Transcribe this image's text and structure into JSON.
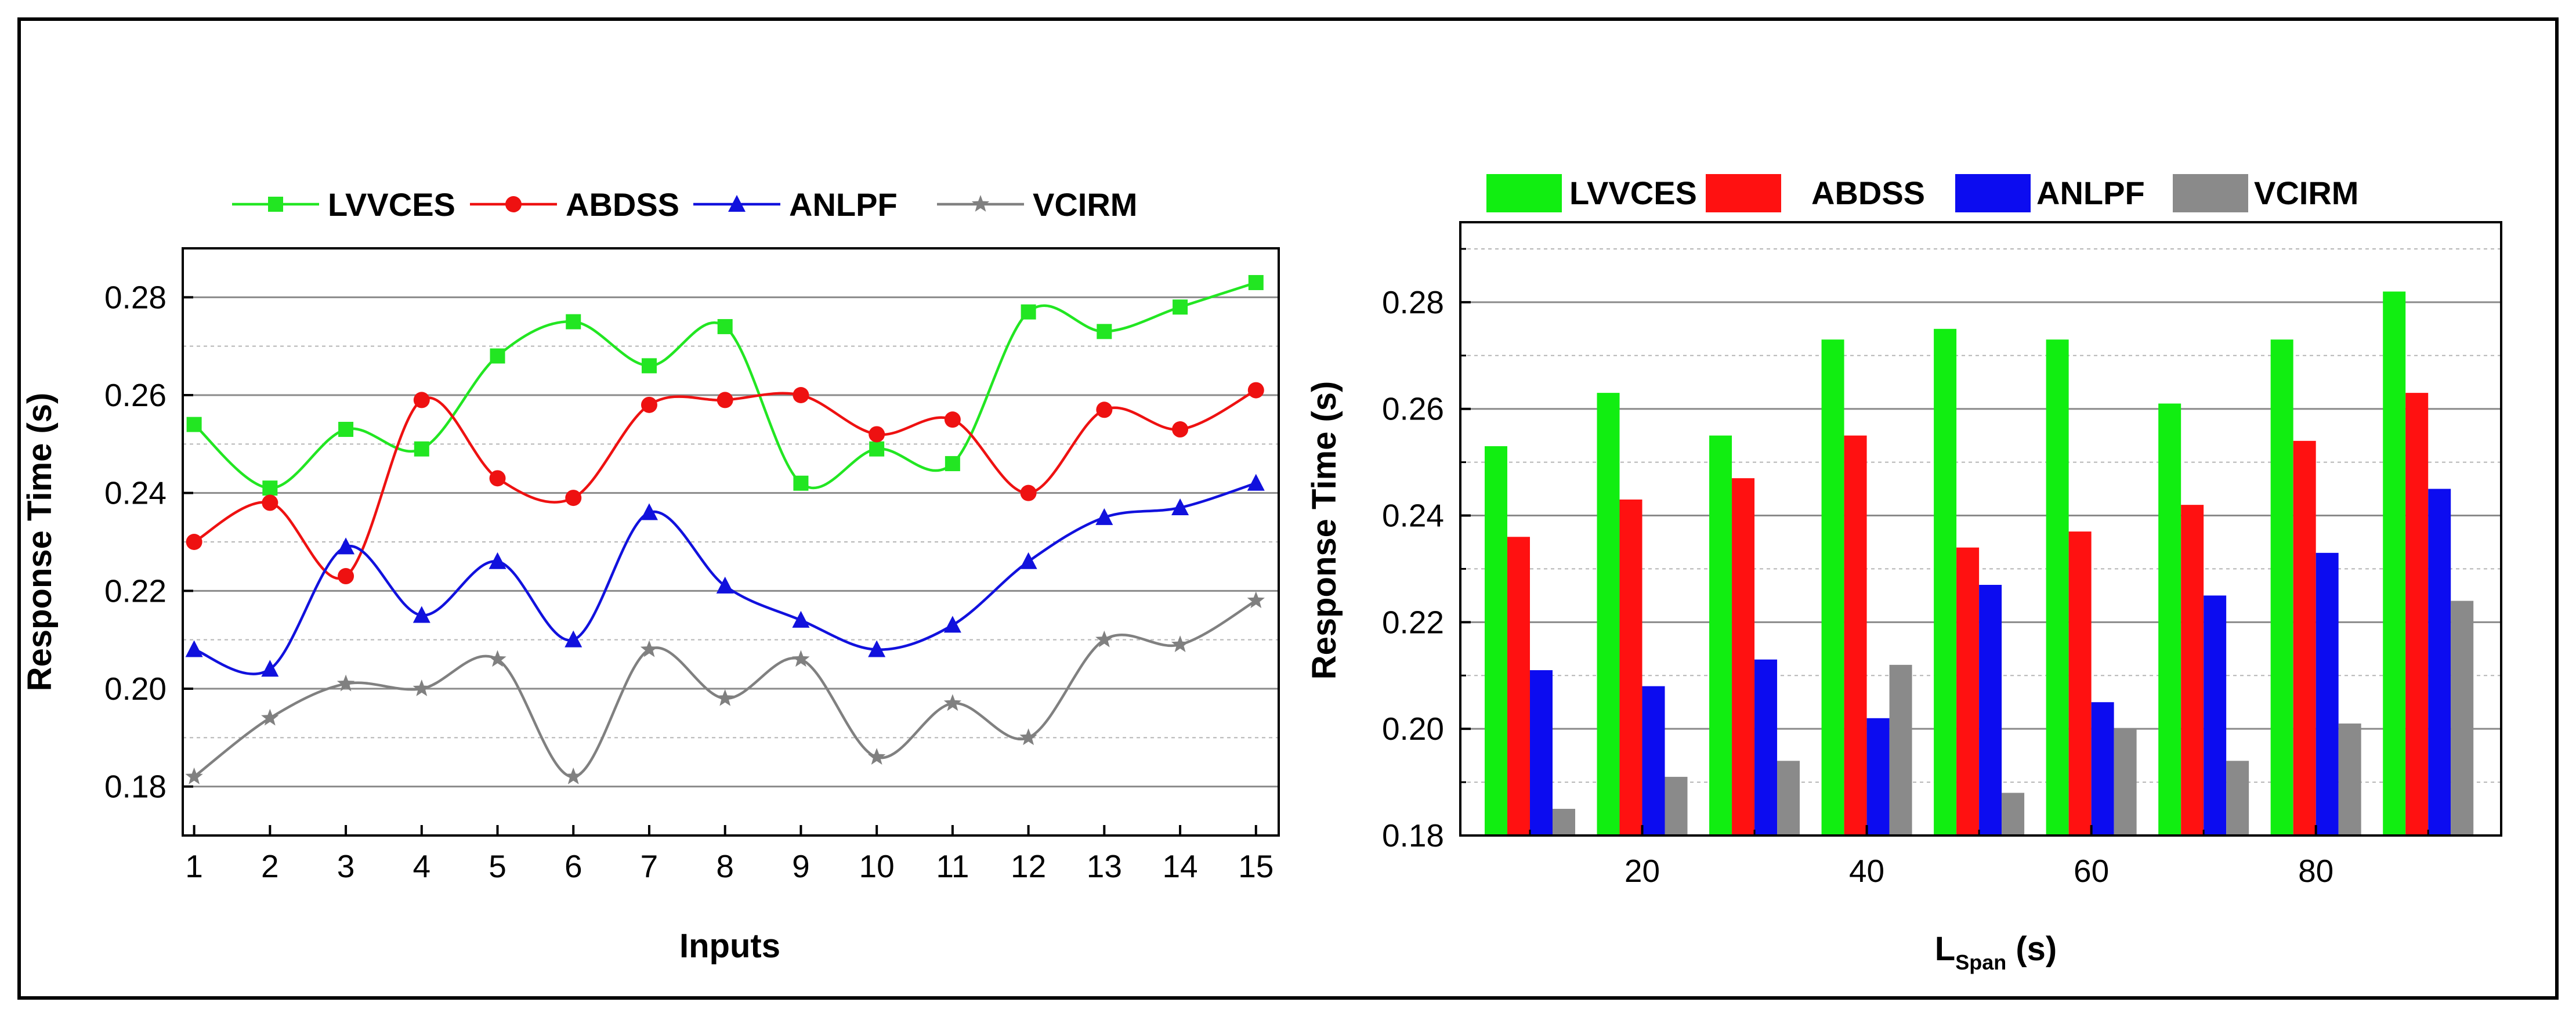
{
  "chart_data": [
    {
      "type": "line",
      "title": "",
      "xlabel": "Inputs",
      "ylabel": "Response Time (s)",
      "x": [
        1,
        2,
        3,
        4,
        5,
        6,
        7,
        8,
        9,
        10,
        11,
        12,
        13,
        14,
        15
      ],
      "xticks": [
        "1",
        "2",
        "3",
        "4",
        "5",
        "6",
        "7",
        "8",
        "9",
        "10",
        "11",
        "12",
        "13",
        "14",
        "15"
      ],
      "xlim": [
        0.85,
        15.3
      ],
      "ylim": [
        0.17,
        0.29
      ],
      "yticks": [
        0.18,
        0.2,
        0.22,
        0.24,
        0.26,
        0.28
      ],
      "ytick_labels": [
        "0.18",
        "0.20",
        "0.22",
        "0.24",
        "0.26",
        "0.28"
      ],
      "grid": true,
      "legend_position": "top",
      "series": [
        {
          "name": "LVVCES",
          "color": "#22e622",
          "marker": "square",
          "values": [
            0.254,
            0.241,
            0.253,
            0.249,
            0.268,
            0.275,
            0.266,
            0.274,
            0.242,
            0.249,
            0.246,
            0.277,
            0.273,
            0.278,
            0.283
          ]
        },
        {
          "name": "ABDSS",
          "color": "#ee1111",
          "marker": "circle",
          "values": [
            0.23,
            0.238,
            0.223,
            0.259,
            0.243,
            0.239,
            0.258,
            0.259,
            0.26,
            0.252,
            0.255,
            0.24,
            0.257,
            0.253,
            0.261
          ]
        },
        {
          "name": "ANLPF",
          "color": "#1111dd",
          "marker": "triangle",
          "values": [
            0.208,
            0.204,
            0.229,
            0.215,
            0.226,
            0.21,
            0.236,
            0.221,
            0.214,
            0.208,
            0.213,
            0.226,
            0.235,
            0.237,
            0.242
          ]
        },
        {
          "name": "VCIRM",
          "color": "#808080",
          "marker": "star",
          "values": [
            0.182,
            0.194,
            0.201,
            0.2,
            0.206,
            0.182,
            0.208,
            0.198,
            0.206,
            0.186,
            0.197,
            0.19,
            0.21,
            0.209,
            0.218
          ]
        }
      ]
    },
    {
      "type": "bar",
      "title": "",
      "xlabel": "L",
      "xlabel_sub": "Span",
      "xlabel_suffix": " (s)",
      "ylabel": "Response Time (s)",
      "categories": [
        10,
        20,
        30,
        40,
        50,
        60,
        70,
        80,
        90
      ],
      "xlim": [
        3.8,
        96.5
      ],
      "xticks": [
        20,
        40,
        60,
        80
      ],
      "xtick_labels": [
        "20",
        "40",
        "60",
        "80"
      ],
      "ylim": [
        0.18,
        0.295
      ],
      "yticks": [
        0.18,
        0.2,
        0.22,
        0.24,
        0.26,
        0.28
      ],
      "ytick_labels": [
        "0.18",
        "0.20",
        "0.22",
        "0.24",
        "0.26",
        "0.28"
      ],
      "grid": true,
      "legend_position": "top",
      "series": [
        {
          "name": "LVVCES",
          "color": "#11ee11",
          "values": [
            0.253,
            0.263,
            0.255,
            0.273,
            0.275,
            0.273,
            0.261,
            0.273,
            0.282
          ]
        },
        {
          "name": "ABDSS",
          "color": "#ff1111",
          "values": [
            0.236,
            0.243,
            0.247,
            0.255,
            0.234,
            0.237,
            0.242,
            0.254,
            0.263
          ]
        },
        {
          "name": "ANLPF",
          "color": "#0c0cf0",
          "values": [
            0.211,
            0.208,
            0.213,
            0.202,
            0.227,
            0.205,
            0.225,
            0.233,
            0.245
          ]
        },
        {
          "name": "VCIRM",
          "color": "#8a8a8a",
          "values": [
            0.185,
            0.191,
            0.194,
            0.212,
            0.188,
            0.2,
            0.194,
            0.201,
            0.224
          ]
        }
      ]
    }
  ]
}
